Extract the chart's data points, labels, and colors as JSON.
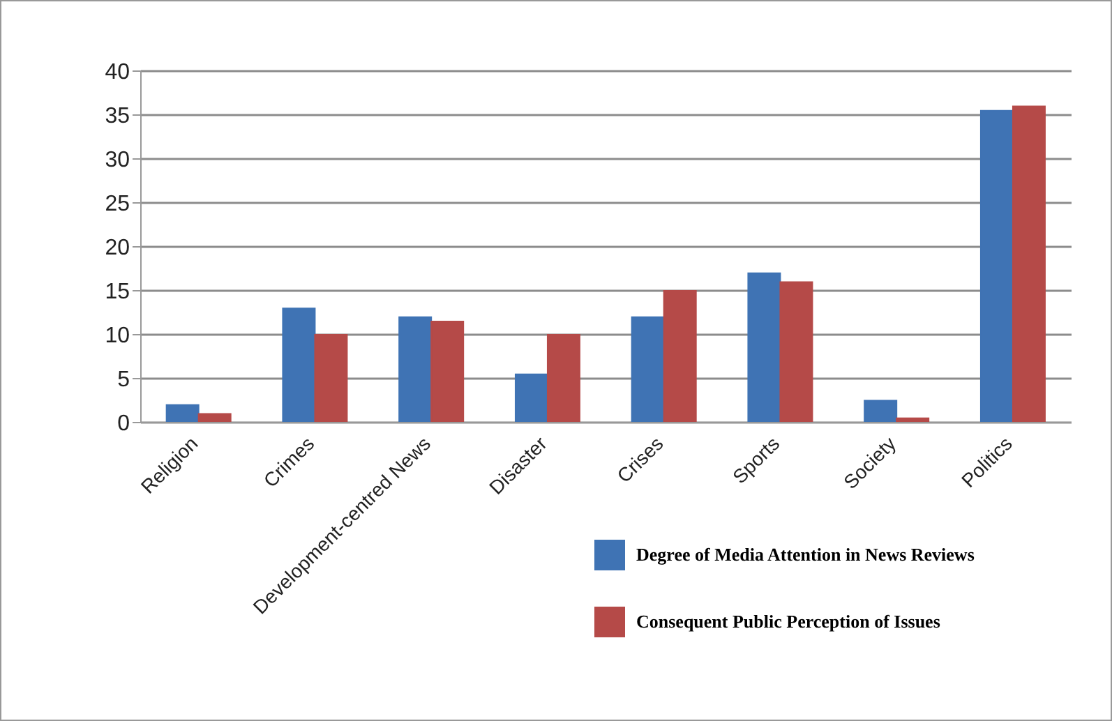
{
  "chart_data": {
    "type": "bar",
    "categories": [
      "Religion",
      "Crimes",
      "Development-centred News",
      "Disaster",
      "Crises",
      "Sports",
      "Society",
      "Politics"
    ],
    "series": [
      {
        "name": "Degree of Media Attention in News Reviews",
        "color": "#3f73b4",
        "values": [
          2,
          13,
          12,
          5.5,
          12,
          17,
          2.5,
          35.5
        ]
      },
      {
        "name": "Consequent Public Perception of Issues",
        "color": "#b54a48",
        "values": [
          1,
          10,
          11.5,
          10,
          15,
          16,
          0.5,
          36
        ]
      }
    ],
    "ylim": [
      0,
      40
    ],
    "yticks": [
      0,
      5,
      10,
      15,
      20,
      25,
      30,
      35,
      40
    ],
    "grid": "y",
    "legend": "bottom right"
  }
}
